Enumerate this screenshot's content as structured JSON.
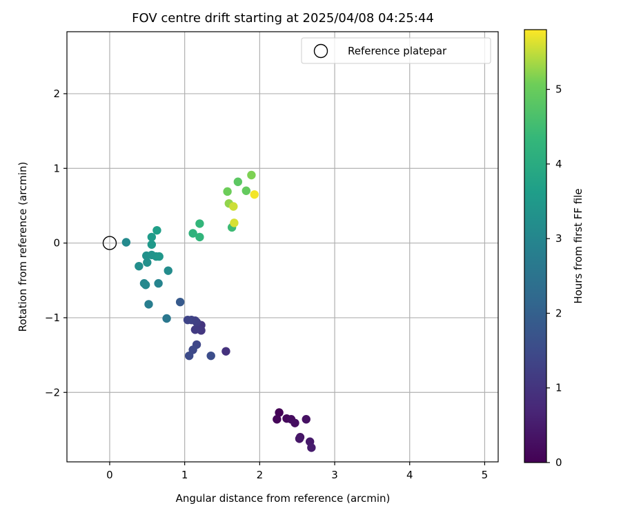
{
  "chart_data": {
    "type": "scatter",
    "title": "FOV centre drift starting at 2025/04/08 04:25:44",
    "xlabel": "Angular distance from reference (arcmin)",
    "ylabel": "Rotation from reference (arcmin)",
    "xlim": [
      -0.57,
      5.18
    ],
    "ylim": [
      -2.93,
      2.83
    ],
    "xticks": [
      0,
      1,
      2,
      3,
      4,
      5
    ],
    "yticks": [
      -2,
      -1,
      0,
      1,
      2
    ],
    "xtick_labels": [
      "0",
      "1",
      "2",
      "3",
      "4",
      "5"
    ],
    "ytick_labels": [
      "−2",
      "−1",
      "0",
      "1",
      "2"
    ],
    "grid": true,
    "colormap": "viridis",
    "colorbar": {
      "label": "Hours from first FF file",
      "range": [
        0,
        5.8
      ],
      "ticks": [
        0,
        1,
        2,
        3,
        4,
        5
      ],
      "tick_labels": [
        "0",
        "1",
        "2",
        "3",
        "4",
        "5"
      ]
    },
    "legend": {
      "position": "top-right",
      "entries": [
        {
          "label": "Reference platepar",
          "marker": "open-circle"
        }
      ]
    },
    "reference_point": {
      "x": 0,
      "y": 0
    },
    "points": [
      {
        "x": 2.26,
        "y": -2.27,
        "t": 0.05
      },
      {
        "x": 2.23,
        "y": -2.36,
        "t": 0.1
      },
      {
        "x": 2.36,
        "y": -2.35,
        "t": 0.15
      },
      {
        "x": 2.42,
        "y": -2.36,
        "t": 0.2
      },
      {
        "x": 2.47,
        "y": -2.41,
        "t": 0.25
      },
      {
        "x": 2.62,
        "y": -2.36,
        "t": 0.3
      },
      {
        "x": 2.54,
        "y": -2.6,
        "t": 0.35
      },
      {
        "x": 2.53,
        "y": -2.62,
        "t": 0.4
      },
      {
        "x": 2.67,
        "y": -2.66,
        "t": 0.45
      },
      {
        "x": 2.69,
        "y": -2.74,
        "t": 0.5
      },
      {
        "x": 1.55,
        "y": -1.45,
        "t": 0.95
      },
      {
        "x": 1.22,
        "y": -1.1,
        "t": 1.0
      },
      {
        "x": 1.22,
        "y": -1.17,
        "t": 1.05
      },
      {
        "x": 1.18,
        "y": -1.15,
        "t": 1.1
      },
      {
        "x": 1.14,
        "y": -1.16,
        "t": 1.15
      },
      {
        "x": 1.16,
        "y": -1.06,
        "t": 1.2
      },
      {
        "x": 1.14,
        "y": -1.04,
        "t": 1.25
      },
      {
        "x": 1.09,
        "y": -1.03,
        "t": 1.3
      },
      {
        "x": 1.04,
        "y": -1.03,
        "t": 1.35
      },
      {
        "x": 1.16,
        "y": -1.36,
        "t": 1.4
      },
      {
        "x": 1.11,
        "y": -1.43,
        "t": 1.45
      },
      {
        "x": 1.06,
        "y": -1.51,
        "t": 1.5
      },
      {
        "x": 1.35,
        "y": -1.51,
        "t": 1.55
      },
      {
        "x": 0.94,
        "y": -0.79,
        "t": 1.85
      },
      {
        "x": 0.76,
        "y": -1.01,
        "t": 2.6
      },
      {
        "x": 0.52,
        "y": -0.82,
        "t": 2.75
      },
      {
        "x": 0.65,
        "y": -0.54,
        "t": 2.95
      },
      {
        "x": 0.46,
        "y": -0.54,
        "t": 3.0
      },
      {
        "x": 0.48,
        "y": -0.56,
        "t": 3.05
      },
      {
        "x": 0.78,
        "y": -0.37,
        "t": 3.15
      },
      {
        "x": 0.39,
        "y": -0.31,
        "t": 3.2
      },
      {
        "x": 0.5,
        "y": -0.26,
        "t": 3.25
      },
      {
        "x": 0.49,
        "y": -0.17,
        "t": 3.3
      },
      {
        "x": 0.56,
        "y": -0.16,
        "t": 3.35
      },
      {
        "x": 0.62,
        "y": -0.18,
        "t": 3.4
      },
      {
        "x": 0.66,
        "y": -0.18,
        "t": 3.45
      },
      {
        "x": 0.56,
        "y": -0.02,
        "t": 3.5
      },
      {
        "x": 0.56,
        "y": 0.08,
        "t": 3.55
      },
      {
        "x": 0.22,
        "y": 0.01,
        "t": 3.1
      },
      {
        "x": 0.63,
        "y": 0.17,
        "t": 3.65
      },
      {
        "x": 1.11,
        "y": 0.13,
        "t": 4.2
      },
      {
        "x": 1.2,
        "y": 0.08,
        "t": 4.25
      },
      {
        "x": 1.2,
        "y": 0.26,
        "t": 4.3
      },
      {
        "x": 1.63,
        "y": 0.21,
        "t": 4.45
      },
      {
        "x": 1.71,
        "y": 0.82,
        "t": 4.85
      },
      {
        "x": 1.57,
        "y": 0.69,
        "t": 5.05
      },
      {
        "x": 1.59,
        "y": 0.53,
        "t": 5.25
      },
      {
        "x": 1.82,
        "y": 0.7,
        "t": 4.95
      },
      {
        "x": 1.89,
        "y": 0.91,
        "t": 5.15
      },
      {
        "x": 1.65,
        "y": 0.49,
        "t": 5.55
      },
      {
        "x": 1.66,
        "y": 0.27,
        "t": 5.6
      },
      {
        "x": 1.93,
        "y": 0.65,
        "t": 5.75
      }
    ]
  }
}
